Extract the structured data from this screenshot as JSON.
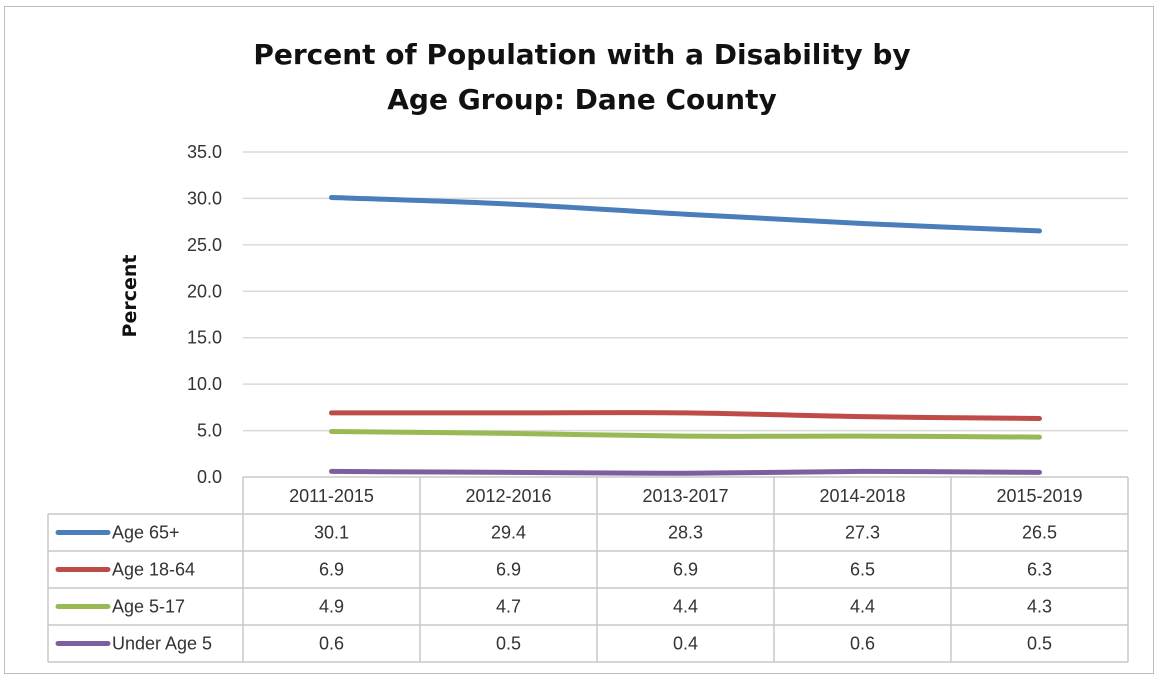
{
  "chart_data": {
    "type": "line",
    "title": "Percent of Population with a Disability by Age Group: Dane County",
    "title_lines": [
      "Percent of Population with a Disability by",
      "Age Group: Dane County"
    ],
    "ylabel": "Percent",
    "xlabel": "",
    "ylim": [
      0,
      35
    ],
    "yticks": [
      "0.0",
      "5.0",
      "10.0",
      "15.0",
      "20.0",
      "25.0",
      "30.0",
      "35.0"
    ],
    "grid": true,
    "legend": "data-table",
    "categories": [
      "2011-2015",
      "2012-2016",
      "2013-2017",
      "2014-2018",
      "2015-2019"
    ],
    "series": [
      {
        "name": "Age 65+",
        "color": "#4a7ebb",
        "values": [
          30.1,
          29.4,
          28.3,
          27.3,
          26.5
        ],
        "labels": [
          "30.1",
          "29.4",
          "28.3",
          "27.3",
          "26.5"
        ]
      },
      {
        "name": "Age 18-64",
        "color": "#be4b48",
        "values": [
          6.9,
          6.9,
          6.9,
          6.5,
          6.3
        ],
        "labels": [
          "6.9",
          "6.9",
          "6.9",
          "6.5",
          "6.3"
        ]
      },
      {
        "name": "Age 5-17",
        "color": "#98b954",
        "values": [
          4.9,
          4.7,
          4.4,
          4.4,
          4.3
        ],
        "labels": [
          "4.9",
          "4.7",
          "4.4",
          "4.4",
          "4.3"
        ]
      },
      {
        "name": "Under Age 5",
        "color": "#7d5fa0",
        "values": [
          0.6,
          0.5,
          0.4,
          0.6,
          0.5
        ],
        "labels": [
          "0.6",
          "0.5",
          "0.4",
          "0.6",
          "0.5"
        ]
      }
    ]
  }
}
